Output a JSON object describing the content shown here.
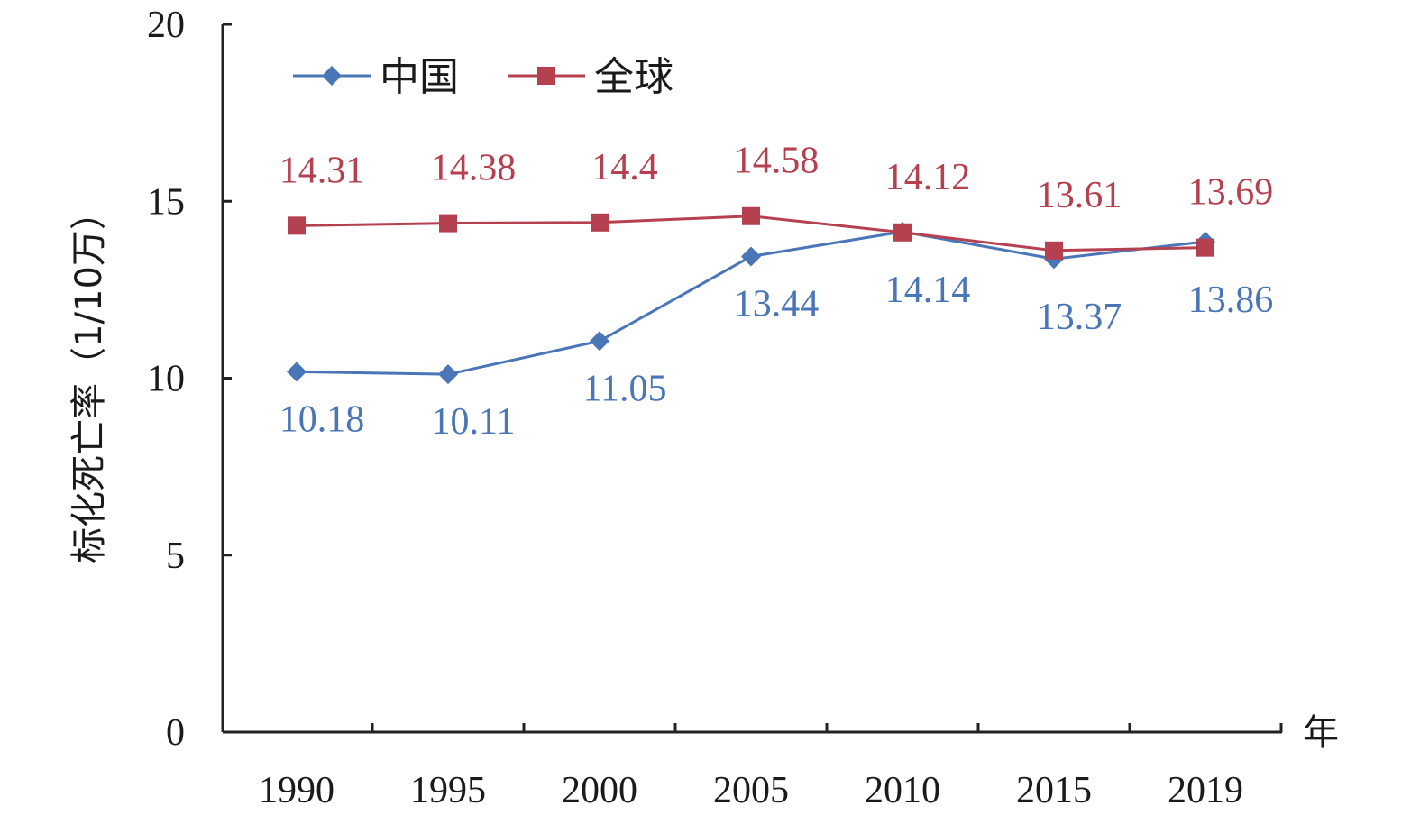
{
  "chart_data": {
    "type": "line",
    "categories": [
      "1990",
      "1995",
      "2000",
      "2005",
      "2010",
      "2015",
      "2019"
    ],
    "xlabel": "年",
    "ylabel": "标化死亡率（1/10万）",
    "ylim": [
      0,
      20
    ],
    "yticks": [
      "0",
      "5",
      "10",
      "15",
      "20"
    ],
    "grid": false,
    "legend_position": "top-left",
    "series": [
      {
        "name": "中国",
        "color": "#4a76b8",
        "marker": "diamond",
        "values": [
          10.18,
          10.11,
          11.05,
          13.44,
          14.14,
          13.37,
          13.86
        ],
        "labels": [
          "10.18",
          "10.11",
          "11.05",
          "13.44",
          "14.14",
          "13.37",
          "13.86"
        ]
      },
      {
        "name": "全球",
        "color": "#b5404f",
        "marker": "square",
        "values": [
          14.31,
          14.38,
          14.4,
          14.58,
          14.12,
          13.61,
          13.69
        ],
        "labels": [
          "14.31",
          "14.38",
          "14.4",
          "14.58",
          "14.12",
          "13.61",
          "13.69"
        ]
      }
    ]
  }
}
